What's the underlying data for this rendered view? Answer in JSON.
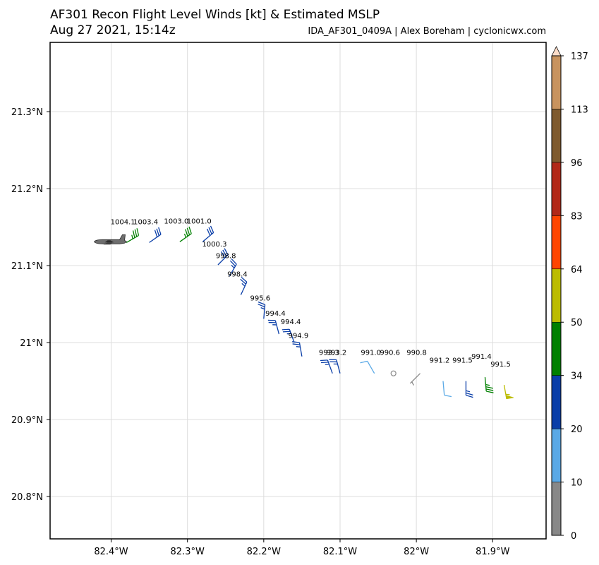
{
  "title": {
    "line1": "AF301 Recon Flight Level Winds [kt] & Estimated MSLP",
    "line2": "Aug 27 2021, 15:14z",
    "subtitle": "IDA_AF301_0409A | Alex Boreham | cyclonicwx.com"
  },
  "axes": {
    "lon_ticks": [
      {
        "value": -82.4,
        "label": "82.4°W"
      },
      {
        "value": -82.3,
        "label": "82.3°W"
      },
      {
        "value": -82.2,
        "label": "82.2°W"
      },
      {
        "value": -82.1,
        "label": "82.1°W"
      },
      {
        "value": -82.0,
        "label": "82°W"
      },
      {
        "value": -81.9,
        "label": "81.9°W"
      }
    ],
    "lat_ticks": [
      {
        "value": 21.3,
        "label": "21.3°N"
      },
      {
        "value": 21.2,
        "label": "21.2°N"
      },
      {
        "value": 21.1,
        "label": "21.1°N"
      },
      {
        "value": 21.0,
        "label": "21°N"
      },
      {
        "value": 20.9,
        "label": "20.9°N"
      },
      {
        "value": 20.8,
        "label": "20.8°N"
      }
    ],
    "lon_range": [
      -82.48,
      -81.83
    ],
    "lat_range": [
      20.745,
      21.39
    ],
    "grid": true
  },
  "colorbar": {
    "levels": [
      "0",
      "10",
      "20",
      "34",
      "50",
      "64",
      "83",
      "96",
      "113",
      "137"
    ],
    "colors": [
      "#888888",
      "#5aa9e6",
      "#0a3ea8",
      "#008000",
      "#bcbc00",
      "#ff4500",
      "#b22818",
      "#7f5a2e",
      "#c8935e"
    ],
    "extend_color": "#fcdcc8"
  },
  "aircraft": {
    "lon": -82.4,
    "lat": 21.131,
    "icon": "aircraft-icon"
  },
  "chart_data": {
    "type": "map",
    "units": "kt",
    "observations": [
      {
        "lon": -82.38,
        "lat": 21.13,
        "wind_kt": 37,
        "dir_deg": 60,
        "mslp": "1004.1"
      },
      {
        "lon": -82.35,
        "lat": 21.13,
        "wind_kt": 28,
        "dir_deg": 55,
        "mslp": "1003.4"
      },
      {
        "lon": -82.31,
        "lat": 21.131,
        "wind_kt": 36,
        "dir_deg": 55,
        "mslp": "1003.0"
      },
      {
        "lon": -82.28,
        "lat": 21.131,
        "wind_kt": 29,
        "dir_deg": 50,
        "mslp": "1001.0"
      },
      {
        "lon": -82.26,
        "lat": 21.101,
        "wind_kt": 28,
        "dir_deg": 45,
        "mslp": "1000.3"
      },
      {
        "lon": -82.245,
        "lat": 21.086,
        "wind_kt": 27,
        "dir_deg": 30,
        "mslp": "998.8"
      },
      {
        "lon": -82.23,
        "lat": 21.062,
        "wind_kt": 25,
        "dir_deg": 25,
        "mslp": "998.4"
      },
      {
        "lon": -82.2,
        "lat": 21.031,
        "wind_kt": 25,
        "dir_deg": 5,
        "mslp": "995.6"
      },
      {
        "lon": -82.18,
        "lat": 21.011,
        "wind_kt": 26,
        "dir_deg": 345,
        "mslp": "994.4"
      },
      {
        "lon": -82.16,
        "lat": 21.0,
        "wind_kt": 27,
        "dir_deg": 340,
        "mslp": "994.4"
      },
      {
        "lon": -82.15,
        "lat": 20.982,
        "wind_kt": 27,
        "dir_deg": 350,
        "mslp": "994.9"
      },
      {
        "lon": -82.11,
        "lat": 20.96,
        "wind_kt": 26,
        "dir_deg": 340,
        "mslp": "993.3"
      },
      {
        "lon": -82.1,
        "lat": 20.96,
        "wind_kt": 25,
        "dir_deg": 345,
        "mslp": "993.2"
      },
      {
        "lon": -82.055,
        "lat": 20.96,
        "wind_kt": 12,
        "dir_deg": 330,
        "mslp": "991.0"
      },
      {
        "lon": -82.03,
        "lat": 20.96,
        "wind_kt": 0,
        "dir_deg": 0,
        "mslp": "990.6"
      },
      {
        "lon": -81.995,
        "lat": 20.96,
        "wind_kt": 5,
        "dir_deg": 225,
        "mslp": "990.8"
      },
      {
        "lon": -81.965,
        "lat": 20.95,
        "wind_kt": 12,
        "dir_deg": 175,
        "mslp": "991.2"
      },
      {
        "lon": -81.935,
        "lat": 20.95,
        "wind_kt": 26,
        "dir_deg": 180,
        "mslp": "991.5"
      },
      {
        "lon": -81.91,
        "lat": 20.955,
        "wind_kt": 36,
        "dir_deg": 175,
        "mslp": "991.4"
      },
      {
        "lon": -81.885,
        "lat": 20.945,
        "wind_kt": 55,
        "dir_deg": 170,
        "mslp": "991.5"
      }
    ]
  }
}
